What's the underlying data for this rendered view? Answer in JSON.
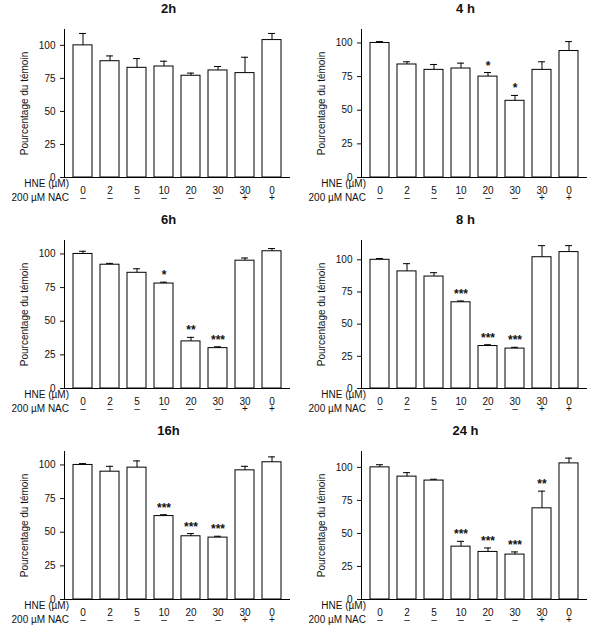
{
  "chart_data": [
    {
      "type": "bar",
      "title": "2h",
      "y_label": "Pourcentage du témoin",
      "x_label": "HNE (µM)",
      "categories": [
        "0",
        "2",
        "5",
        "10",
        "20",
        "30",
        "30",
        "0"
      ],
      "x2_label": "200 µM NAC",
      "categories2": [
        "–",
        "–",
        "–",
        "–",
        "–",
        "–",
        "+",
        "+"
      ],
      "values": [
        100,
        88,
        83,
        84,
        77,
        81,
        79,
        104
      ],
      "errors": [
        9,
        4,
        7,
        4,
        2,
        3,
        12,
        5
      ],
      "annotations": [
        null,
        null,
        null,
        null,
        null,
        null,
        null,
        null
      ],
      "color": "#ffffff",
      "ylim": [
        0,
        112
      ],
      "yticks": [
        0,
        25,
        50,
        75,
        100
      ]
    },
    {
      "type": "bar",
      "title": "4 h",
      "y_label": "Pourcentage du témoin",
      "x_label": "HNE (µM)",
      "categories": [
        "0",
        "2",
        "5",
        "10",
        "20",
        "30",
        "30",
        "0"
      ],
      "x2_label": "200 µM NAC",
      "categories2": [
        "–",
        "–",
        "–",
        "–",
        "–",
        "–",
        "+",
        "+"
      ],
      "values": [
        100,
        84,
        80,
        81,
        75,
        57,
        80,
        94
      ],
      "errors": [
        1,
        2,
        4,
        4,
        3,
        4,
        6,
        7
      ],
      "annotations": [
        null,
        null,
        null,
        null,
        "*",
        "*",
        null,
        null
      ],
      "color": "#ffffff",
      "ylim": [
        0,
        110
      ],
      "yticks": [
        0,
        25,
        50,
        75,
        100
      ]
    },
    {
      "type": "bar",
      "title": "6h",
      "y_label": "Pourcentage du témoin",
      "x_label": "HNE (µM)",
      "categories": [
        "0",
        "2",
        "5",
        "10",
        "20",
        "30",
        "30",
        "0"
      ],
      "x2_label": "200 µM NAC",
      "categories2": [
        "–",
        "–",
        "–",
        "–",
        "–",
        "–",
        "+",
        "+"
      ],
      "values": [
        100,
        92,
        86,
        78,
        35,
        30,
        95,
        102
      ],
      "errors": [
        2,
        1,
        3,
        1,
        3,
        1,
        2,
        2
      ],
      "annotations": [
        null,
        null,
        null,
        "*",
        "**",
        "***",
        null,
        null
      ],
      "color": "#ffffff",
      "ylim": [
        0,
        110
      ],
      "yticks": [
        0,
        25,
        50,
        75,
        100
      ]
    },
    {
      "type": "bar",
      "title": "8 h",
      "y_label": "Pourcentage du témoin",
      "x_label": "HNE (µM)",
      "categories": [
        "0",
        "2",
        "5",
        "10",
        "20",
        "30",
        "30",
        "0"
      ],
      "x2_label": "200 µM NAC",
      "categories2": [
        "–",
        "–",
        "–",
        "–",
        "–",
        "–",
        "+",
        "+"
      ],
      "values": [
        100,
        91,
        87,
        67,
        33,
        31,
        102,
        106
      ],
      "errors": [
        1,
        6,
        3,
        1,
        1,
        1,
        9,
        5
      ],
      "annotations": [
        null,
        null,
        null,
        "***",
        "***",
        "***",
        null,
        null
      ],
      "color": "#ffffff",
      "ylim": [
        0,
        115
      ],
      "yticks": [
        0,
        25,
        50,
        75,
        100
      ]
    },
    {
      "type": "bar",
      "title": "16h",
      "y_label": "Pourcentage du témoin",
      "x_label": "HNE (µM)",
      "categories": [
        "0",
        "2",
        "5",
        "10",
        "20",
        "30",
        "30",
        "0"
      ],
      "x2_label": "200 µM NAC",
      "categories2": [
        "–",
        "–",
        "–",
        "–",
        "–",
        "–",
        "+",
        "+"
      ],
      "values": [
        100,
        95,
        98,
        62,
        47,
        46,
        96,
        102
      ],
      "errors": [
        1,
        4,
        5,
        1,
        2,
        1,
        3,
        4
      ],
      "annotations": [
        null,
        null,
        null,
        "***",
        "***",
        "***",
        null,
        null
      ],
      "color": "#ffffff",
      "ylim": [
        0,
        110
      ],
      "yticks": [
        0,
        25,
        50,
        75,
        100
      ]
    },
    {
      "type": "bar",
      "title": "24 h",
      "y_label": "Pourcentage du témoin",
      "x_label": "HNE (µM)",
      "categories": [
        "0",
        "2",
        "5",
        "10",
        "20",
        "30",
        "30",
        "0"
      ],
      "x2_label": "200 µM NAC",
      "categories2": [
        "–",
        "–",
        "–",
        "–",
        "–",
        "–",
        "+",
        "+"
      ],
      "values": [
        100,
        93,
        90,
        40,
        36,
        34,
        69,
        103
      ],
      "errors": [
        2,
        3,
        1,
        4,
        3,
        2,
        13,
        4
      ],
      "annotations": [
        null,
        null,
        null,
        "***",
        "***",
        "***",
        "**",
        null
      ],
      "color": "#ffffff",
      "ylim": [
        0,
        112
      ],
      "yticks": [
        0,
        25,
        50,
        75,
        100
      ]
    }
  ]
}
